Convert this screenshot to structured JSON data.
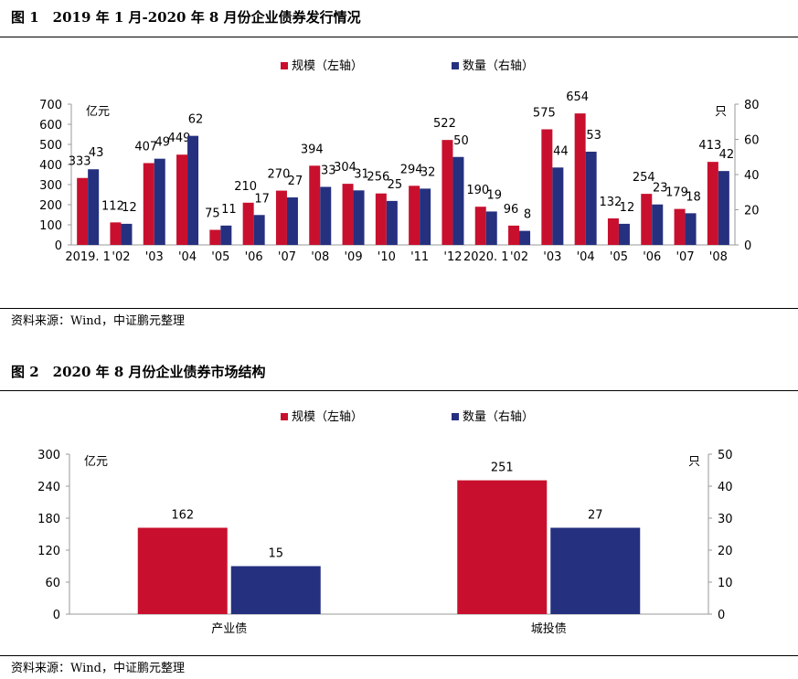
{
  "figure1": {
    "title": "图 1　2019 年 1 月-2020 年 8 月份企业债券发行情况",
    "source": "资料来源：Wind，中证鹏元整理"
  },
  "figure2": {
    "title": "图 2　2020 年 8 月份企业债券市场结构",
    "source": "资料来源：Wind，中证鹏元整理"
  },
  "chart_data": [
    {
      "type": "bar",
      "categories": [
        "2019. 1",
        "'02",
        "'03",
        "'04",
        "'05",
        "'06",
        "'07",
        "'08",
        "'09",
        "'10",
        "'11",
        "'12",
        "2020. 1",
        "'02",
        "'03",
        "'04",
        "'05",
        "'06",
        "'07",
        "'08"
      ],
      "series": [
        {
          "name": "规模（左轴）",
          "axis": "left",
          "color": "#C8102E",
          "values": [
            333,
            112,
            407,
            449,
            75,
            210,
            270,
            394,
            304,
            256,
            294,
            522,
            190,
            96,
            575,
            654,
            132,
            254,
            179,
            413
          ]
        },
        {
          "name": "数量（右轴）",
          "axis": "right",
          "color": "#25307F",
          "values": [
            43,
            12,
            49,
            62,
            11,
            17,
            27,
            33,
            31,
            25,
            32,
            50,
            19,
            8,
            44,
            53,
            12,
            23,
            18,
            42
          ]
        }
      ],
      "ylabel_left": "亿元",
      "ylabel_right": "只",
      "ylim_left": [
        0,
        700
      ],
      "yticks_left": [
        0,
        100,
        200,
        300,
        400,
        500,
        600,
        700
      ],
      "ylim_right": [
        0,
        80
      ],
      "yticks_right": [
        0,
        20,
        40,
        60,
        80
      ],
      "legend": "top-center",
      "grid": false
    },
    {
      "type": "bar",
      "categories": [
        "产业债",
        "城投债"
      ],
      "series": [
        {
          "name": "规模（左轴）",
          "axis": "left",
          "color": "#C8102E",
          "values": [
            162,
            251
          ]
        },
        {
          "name": "数量（右轴）",
          "axis": "right",
          "color": "#25307F",
          "values": [
            15,
            27
          ]
        }
      ],
      "ylabel_left": "亿元",
      "ylabel_right": "只",
      "ylim_left": [
        0,
        300
      ],
      "yticks_left": [
        0,
        60,
        120,
        180,
        240,
        300
      ],
      "ylim_right": [
        0,
        50
      ],
      "yticks_right": [
        0,
        10,
        20,
        30,
        40,
        50
      ],
      "legend": "top-center",
      "grid": false
    }
  ]
}
